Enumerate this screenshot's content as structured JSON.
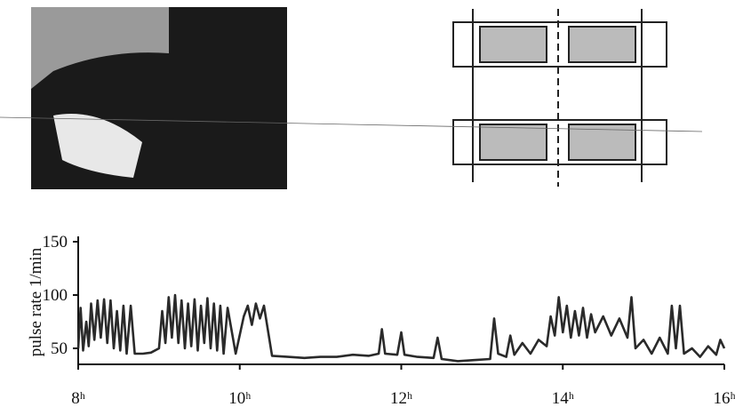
{
  "chart_data": {
    "type": "line",
    "ylabel": "pulse rate 1/min",
    "xlim": [
      8,
      16
    ],
    "ylim": [
      35,
      150
    ],
    "yticks": [
      50,
      100,
      150
    ],
    "xticks": [
      {
        "value": 8,
        "label": "8ʰ"
      },
      {
        "value": 10,
        "label": "10ʰ"
      },
      {
        "value": 12,
        "label": "12ʰ"
      },
      {
        "value": 14,
        "label": "14ʰ"
      },
      {
        "value": 16,
        "label": "16ʰ"
      }
    ],
    "grid": false,
    "series": [
      {
        "color": "#2a2a2a",
        "x": [
          8.0,
          8.03,
          8.06,
          8.1,
          8.13,
          8.16,
          8.2,
          8.24,
          8.28,
          8.32,
          8.36,
          8.4,
          8.44,
          8.48,
          8.52,
          8.56,
          8.6,
          8.65,
          8.7,
          8.8,
          8.9,
          9.0,
          9.04,
          9.08,
          9.12,
          9.16,
          9.2,
          9.24,
          9.28,
          9.32,
          9.36,
          9.4,
          9.44,
          9.48,
          9.52,
          9.56,
          9.6,
          9.64,
          9.68,
          9.72,
          9.76,
          9.8,
          9.85,
          9.95,
          10.05,
          10.1,
          10.15,
          10.2,
          10.25,
          10.3,
          10.4,
          10.6,
          10.8,
          11.0,
          11.2,
          11.4,
          11.6,
          11.72,
          11.76,
          11.8,
          11.95,
          12.0,
          12.04,
          12.2,
          12.4,
          12.45,
          12.5,
          12.7,
          12.9,
          13.1,
          13.15,
          13.2,
          13.3,
          13.35,
          13.4,
          13.5,
          13.6,
          13.7,
          13.8,
          13.85,
          13.9,
          13.95,
          14.0,
          14.05,
          14.1,
          14.15,
          14.2,
          14.25,
          14.3,
          14.35,
          14.4,
          14.5,
          14.6,
          14.7,
          14.8,
          14.85,
          14.9,
          15.0,
          15.1,
          15.2,
          15.3,
          15.35,
          15.4,
          15.45,
          15.5,
          15.6,
          15.7,
          15.8,
          15.9,
          15.95,
          16.0
        ],
        "values": [
          50,
          88,
          48,
          75,
          52,
          92,
          58,
          95,
          60,
          96,
          55,
          95,
          50,
          85,
          48,
          90,
          45,
          90,
          45,
          45,
          46,
          50,
          85,
          55,
          98,
          60,
          100,
          55,
          95,
          50,
          92,
          52,
          96,
          48,
          90,
          55,
          97,
          50,
          92,
          48,
          90,
          45,
          88,
          45,
          80,
          90,
          72,
          92,
          78,
          90,
          43,
          42,
          41,
          42,
          42,
          44,
          43,
          45,
          68,
          45,
          44,
          65,
          44,
          42,
          41,
          60,
          40,
          38,
          39,
          40,
          78,
          45,
          42,
          62,
          44,
          55,
          45,
          58,
          52,
          80,
          62,
          98,
          65,
          90,
          60,
          85,
          62,
          88,
          60,
          82,
          65,
          80,
          62,
          78,
          60,
          98,
          50,
          58,
          45,
          60,
          45,
          90,
          50,
          90,
          45,
          50,
          42,
          52,
          44,
          58,
          50
        ]
      }
    ]
  }
}
